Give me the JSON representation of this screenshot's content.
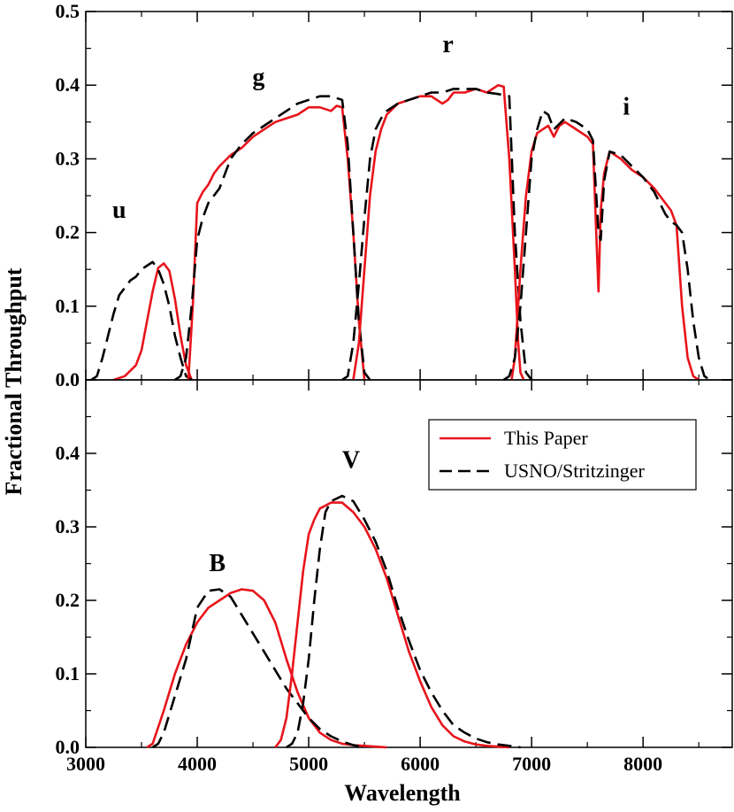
{
  "chart_data": {
    "type": "line",
    "xlabel": "Wavelength",
    "ylabel": "Fractional Throughput",
    "xlim": [
      3000,
      8800
    ],
    "x_ticks": [
      3000,
      4000,
      5000,
      6000,
      7000,
      8000
    ],
    "y_ticks": [
      "0.0",
      "0.1",
      "0.2",
      "0.3",
      "0.4",
      "0.5"
    ],
    "x_tick_labels": [
      "3000",
      "4000",
      "5000",
      "6000",
      "7000",
      "8000"
    ],
    "legend": {
      "placement": "upper-right of lower panel",
      "entries": [
        {
          "label": "This Paper",
          "color": "#e8141b",
          "style": "solid"
        },
        {
          "label": "USNO/Stritzinger",
          "color": "#000000",
          "style": "dashed"
        }
      ]
    },
    "panels": [
      {
        "name": "top",
        "ylim": [
          0,
          0.5
        ],
        "band_labels": [
          {
            "text": "u",
            "x": 3300,
            "y": 0.22
          },
          {
            "text": "g",
            "x": 4550,
            "y": 0.4
          },
          {
            "text": "r",
            "x": 6250,
            "y": 0.445
          },
          {
            "text": "i",
            "x": 7850,
            "y": 0.36
          }
        ],
        "series": [
          {
            "name": "u",
            "source": "This Paper",
            "x": [
              3250,
              3350,
              3450,
              3500,
              3550,
              3600,
              3650,
              3700,
              3750,
              3800,
              3850,
              3900,
              3950
            ],
            "y": [
              0,
              0.005,
              0.02,
              0.04,
              0.08,
              0.12,
              0.152,
              0.158,
              0.148,
              0.11,
              0.06,
              0.02,
              0
            ]
          },
          {
            "name": "u",
            "source": "USNO/Stritzinger",
            "x": [
              3050,
              3100,
              3150,
              3200,
              3250,
              3300,
              3400,
              3450,
              3500,
              3550,
              3600,
              3650,
              3700,
              3750,
              3800,
              3850,
              3900,
              3950
            ],
            "y": [
              0,
              0.005,
              0.03,
              0.06,
              0.09,
              0.115,
              0.135,
              0.14,
              0.15,
              0.155,
              0.16,
              0.15,
              0.13,
              0.1,
              0.06,
              0.03,
              0.005,
              0
            ]
          },
          {
            "name": "g",
            "source": "This Paper",
            "x": [
              3920,
              3960,
              4000,
              4050,
              4100,
              4150,
              4200,
              4300,
              4400,
              4500,
              4600,
              4700,
              4800,
              4900,
              5000,
              5100,
              5200,
              5250,
              5300,
              5350,
              5400,
              5450,
              5500
            ],
            "y": [
              0,
              0.1,
              0.24,
              0.255,
              0.265,
              0.28,
              0.29,
              0.305,
              0.315,
              0.33,
              0.34,
              0.35,
              0.355,
              0.36,
              0.37,
              0.37,
              0.365,
              0.372,
              0.37,
              0.3,
              0.2,
              0.08,
              0
            ]
          },
          {
            "name": "g",
            "source": "USNO/Stritzinger",
            "x": [
              3800,
              3850,
              3900,
              3950,
              4000,
              4050,
              4100,
              4200,
              4300,
              4400,
              4500,
              4600,
              4700,
              4800,
              4900,
              5000,
              5100,
              5200,
              5300,
              5350,
              5400,
              5450,
              5500,
              5550
            ],
            "y": [
              0,
              0.005,
              0.03,
              0.1,
              0.19,
              0.22,
              0.24,
              0.26,
              0.3,
              0.32,
              0.335,
              0.345,
              0.355,
              0.365,
              0.375,
              0.38,
              0.385,
              0.385,
              0.38,
              0.32,
              0.2,
              0.08,
              0.01,
              0
            ]
          },
          {
            "name": "r",
            "source": "This Paper",
            "x": [
              5400,
              5450,
              5500,
              5550,
              5600,
              5650,
              5700,
              5800,
              5900,
              6000,
              6100,
              6200,
              6250,
              6300,
              6400,
              6500,
              6600,
              6700,
              6750,
              6800,
              6850,
              6880,
              6900,
              6930
            ],
            "y": [
              0,
              0.05,
              0.15,
              0.25,
              0.31,
              0.34,
              0.36,
              0.375,
              0.38,
              0.385,
              0.385,
              0.375,
              0.38,
              0.39,
              0.39,
              0.395,
              0.39,
              0.4,
              0.398,
              0.3,
              0.15,
              0.05,
              0.01,
              0
            ]
          },
          {
            "name": "r",
            "source": "USNO/Stritzinger",
            "x": [
              5300,
              5350,
              5400,
              5450,
              5500,
              5550,
              5600,
              5650,
              5700,
              5800,
              5900,
              6000,
              6100,
              6200,
              6300,
              6400,
              6500,
              6600,
              6700,
              6800,
              6850,
              6900,
              6950,
              7000
            ],
            "y": [
              0,
              0.005,
              0.05,
              0.13,
              0.22,
              0.3,
              0.34,
              0.355,
              0.365,
              0.375,
              0.38,
              0.385,
              0.39,
              0.39,
              0.395,
              0.395,
              0.395,
              0.39,
              0.388,
              0.385,
              0.2,
              0.08,
              0.01,
              0
            ]
          },
          {
            "name": "i",
            "source": "This Paper",
            "x": [
              6820,
              6850,
              6900,
              6950,
              7000,
              7050,
              7100,
              7150,
              7200,
              7250,
              7300,
              7400,
              7500,
              7550,
              7580,
              7600,
              7620,
              7650,
              7700,
              7800,
              7900,
              8000,
              8100,
              8150,
              8200,
              8250,
              8300,
              8350,
              8400,
              8450,
              8500
            ],
            "y": [
              0,
              0.03,
              0.15,
              0.25,
              0.31,
              0.335,
              0.34,
              0.345,
              0.33,
              0.345,
              0.35,
              0.34,
              0.33,
              0.32,
              0.2,
              0.12,
              0.23,
              0.28,
              0.31,
              0.3,
              0.285,
              0.275,
              0.26,
              0.25,
              0.24,
              0.23,
              0.21,
              0.1,
              0.03,
              0.005,
              0
            ]
          },
          {
            "name": "i",
            "source": "USNO/Stritzinger",
            "x": [
              6750,
              6800,
              6850,
              6900,
              6950,
              7000,
              7050,
              7100,
              7150,
              7200,
              7300,
              7400,
              7500,
              7550,
              7600,
              7620,
              7650,
              7700,
              7800,
              7900,
              8000,
              8100,
              8150,
              8200,
              8250,
              8300,
              8350,
              8400,
              8450,
              8500,
              8550,
              8600
            ],
            "y": [
              0,
              0.005,
              0.03,
              0.1,
              0.2,
              0.3,
              0.34,
              0.365,
              0.36,
              0.34,
              0.355,
              0.35,
              0.34,
              0.325,
              0.2,
              0.19,
              0.27,
              0.31,
              0.305,
              0.29,
              0.275,
              0.255,
              0.24,
              0.225,
              0.215,
              0.21,
              0.2,
              0.15,
              0.08,
              0.03,
              0.005,
              0
            ]
          }
        ]
      },
      {
        "name": "bottom",
        "ylim": [
          0,
          0.5
        ],
        "band_labels": [
          {
            "text": "B",
            "x": 4180,
            "y": 0.24
          },
          {
            "text": "V",
            "x": 5380,
            "y": 0.38
          }
        ],
        "series": [
          {
            "name": "B",
            "source": "This Paper",
            "x": [
              3550,
              3600,
              3700,
              3800,
              3900,
              4000,
              4100,
              4200,
              4300,
              4400,
              4500,
              4600,
              4700,
              4800,
              4900,
              5000,
              5100,
              5200,
              5300,
              5400,
              5500,
              5600,
              5700
            ],
            "y": [
              0,
              0.005,
              0.05,
              0.1,
              0.14,
              0.17,
              0.19,
              0.2,
              0.21,
              0.215,
              0.213,
              0.2,
              0.17,
              0.12,
              0.075,
              0.04,
              0.02,
              0.01,
              0.005,
              0.003,
              0.002,
              0.001,
              0
            ]
          },
          {
            "name": "B",
            "source": "USNO/Stritzinger",
            "x": [
              3600,
              3650,
              3700,
              3800,
              3900,
              4000,
              4100,
              4200,
              4300,
              4400,
              4500,
              4600,
              4700,
              4800,
              4900,
              5000,
              5100,
              5200,
              5300,
              5400,
              5500
            ],
            "y": [
              0,
              0.005,
              0.02,
              0.07,
              0.12,
              0.19,
              0.213,
              0.215,
              0.205,
              0.18,
              0.155,
              0.13,
              0.105,
              0.08,
              0.06,
              0.04,
              0.025,
              0.015,
              0.008,
              0.003,
              0
            ]
          },
          {
            "name": "V",
            "source": "This Paper",
            "x": [
              4700,
              4750,
              4800,
              4850,
              4900,
              4950,
              5000,
              5050,
              5100,
              5200,
              5300,
              5400,
              5500,
              5600,
              5700,
              5800,
              5900,
              6000,
              6100,
              6200,
              6300,
              6400,
              6500,
              6600,
              6700,
              6800
            ],
            "y": [
              0,
              0.01,
              0.04,
              0.1,
              0.17,
              0.24,
              0.29,
              0.31,
              0.325,
              0.333,
              0.333,
              0.32,
              0.3,
              0.27,
              0.23,
              0.18,
              0.13,
              0.09,
              0.055,
              0.03,
              0.015,
              0.008,
              0.004,
              0.002,
              0.001,
              0
            ]
          },
          {
            "name": "V",
            "source": "USNO/Stritzinger",
            "x": [
              4800,
              4850,
              4900,
              4950,
              5000,
              5050,
              5100,
              5150,
              5200,
              5300,
              5400,
              5500,
              5600,
              5700,
              5800,
              5900,
              6000,
              6100,
              6200,
              6300,
              6400,
              6500,
              6600,
              6700,
              6800,
              6900
            ],
            "y": [
              0,
              0.005,
              0.02,
              0.06,
              0.12,
              0.2,
              0.27,
              0.32,
              0.335,
              0.342,
              0.335,
              0.31,
              0.28,
              0.24,
              0.19,
              0.145,
              0.105,
              0.075,
              0.05,
              0.03,
              0.02,
              0.012,
              0.007,
              0.004,
              0.002,
              0
            ]
          }
        ]
      }
    ]
  }
}
